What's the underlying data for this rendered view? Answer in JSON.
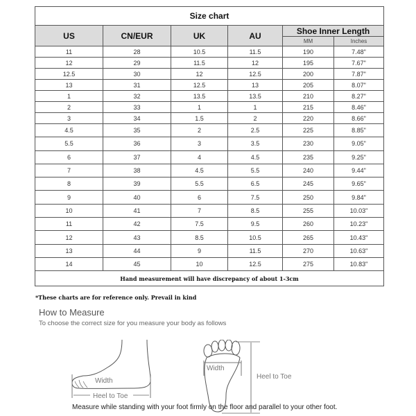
{
  "table": {
    "title": "Size chart",
    "headers": [
      "US",
      "CN/EUR",
      "UK",
      "AU"
    ],
    "length_header": "Shoe Inner Length",
    "sub_headers": [
      "MM",
      "Inches"
    ],
    "rows": [
      [
        "11",
        "28",
        "10.5",
        "11.5",
        "190",
        "7.48\""
      ],
      [
        "12",
        "29",
        "11.5",
        "12",
        "195",
        "7.67\""
      ],
      [
        "12.5",
        "30",
        "12",
        "12.5",
        "200",
        "7.87\""
      ],
      [
        "13",
        "31",
        "12.5",
        "13",
        "205",
        "8.07\""
      ],
      [
        "1",
        "32",
        "13.5",
        "13.5",
        "210",
        "8.27\""
      ],
      [
        "2",
        "33",
        "1",
        "1",
        "215",
        "8.46\""
      ],
      [
        "3",
        "34",
        "1.5",
        "2",
        "220",
        "8.66\""
      ],
      [
        "4.5",
        "35",
        "2",
        "2.5",
        "225",
        "8.85\""
      ],
      [
        "5.5",
        "36",
        "3",
        "3.5",
        "230",
        "9.05\""
      ],
      [
        "6",
        "37",
        "4",
        "4.5",
        "235",
        "9.25\""
      ],
      [
        "7",
        "38",
        "4.5",
        "5.5",
        "240",
        "9.44\""
      ],
      [
        "8",
        "39",
        "5.5",
        "6.5",
        "245",
        "9.65\""
      ],
      [
        "9",
        "40",
        "6",
        "7.5",
        "250",
        "9.84\""
      ],
      [
        "10",
        "41",
        "7",
        "8.5",
        "255",
        "10.03\""
      ],
      [
        "11",
        "42",
        "7.5",
        "9.5",
        "260",
        "10.23\""
      ],
      [
        "12",
        "43",
        "8.5",
        "10.5",
        "265",
        "10.43\""
      ],
      [
        "13",
        "44",
        "9",
        "11.5",
        "270",
        "10.63\""
      ],
      [
        "14",
        "45",
        "10",
        "12.5",
        "275",
        "10.83\""
      ]
    ],
    "footer": "Hand measurement will have discrepancy of about 1-3cm"
  },
  "note": "*These charts are for reference only. Prevail in kind",
  "how_to": {
    "title": "How to Measure",
    "subtitle": "To choose the correct size for you measure your body as follows",
    "side_width_label": "Width",
    "side_length_label": "Heel to Toe",
    "sole_width_label": "Width",
    "sole_length_label": "Heel to Toe",
    "caption": "Measure while standing with your foot firmly on the floor and parallel to your other foot."
  }
}
